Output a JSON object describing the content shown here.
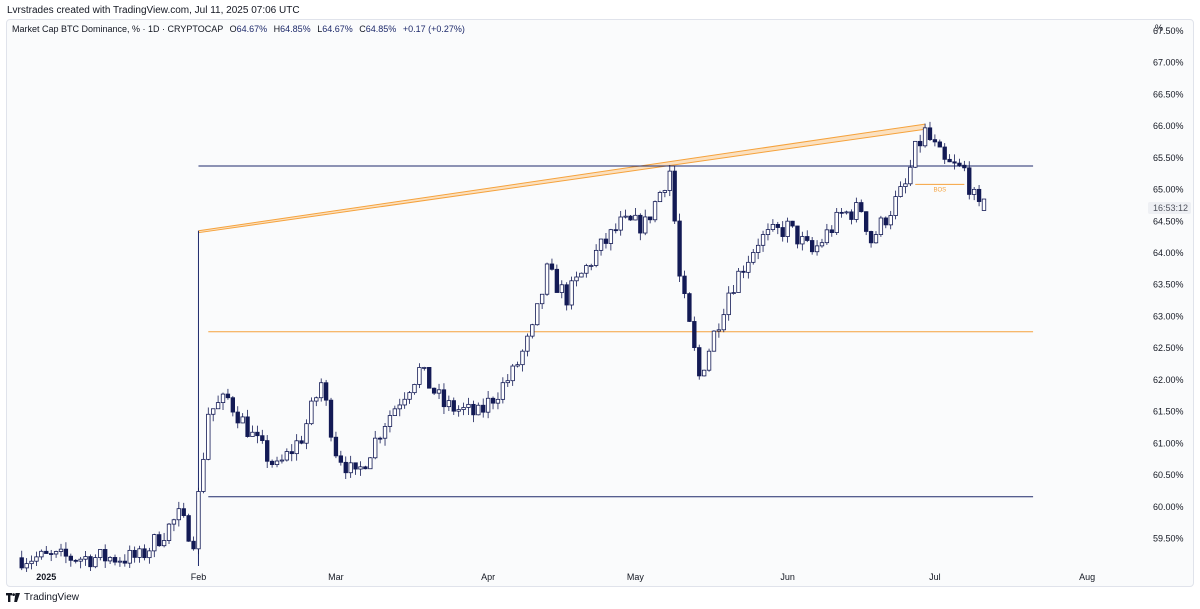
{
  "credit": "Lvrstrades created with TradingView.com, Jul 11, 2025 07:06 UTC",
  "legend": {
    "symbol": "Market Cap BTC Dominance, % · 1D · CRYPTOCAP",
    "open_label": "O",
    "open": "64.67%",
    "high_label": "H",
    "high": "64.85%",
    "low_label": "L",
    "low": "64.67%",
    "close_label": "C",
    "close": "64.85%",
    "change": "+0.17 (+0.27%)"
  },
  "price_axis_unit": "%",
  "countdown": "16:53:12",
  "footer": {
    "brand": "TradingView",
    "logo_icon": "tradingview-logo-icon"
  },
  "colors": {
    "candle": "#131a55",
    "orange": "#f5a23c",
    "channel_fill": "#fbe0bf",
    "axis_text": "#131722",
    "countdown_bg": "#eef0f4"
  },
  "chart_data": {
    "type": "candlestick",
    "title": "Market Cap BTC Dominance, % · 1D · CRYPTOCAP",
    "x_ticks": [
      "2025",
      "Feb",
      "Mar",
      "Apr",
      "May",
      "Jun",
      "Jul",
      "Aug"
    ],
    "x_tick_dates": [
      "2025-01-01",
      "2025-02-01",
      "2025-03-01",
      "2025-04-01",
      "2025-05-01",
      "2025-06-01",
      "2025-07-01",
      "2025-08-01"
    ],
    "y_ticks": [
      "67.50%",
      "67.00%",
      "66.50%",
      "66.00%",
      "65.50%",
      "65.00%",
      "64.50%",
      "64.00%",
      "63.50%",
      "63.00%",
      "62.50%",
      "62.00%",
      "61.50%",
      "61.00%",
      "60.50%",
      "60.00%",
      "59.50%"
    ],
    "ylim": [
      59.07,
      67.67
    ],
    "xlim": [
      "2024-12-24",
      "2025-08-13"
    ],
    "anchors": [
      [
        "2024-12-27",
        59.2
      ],
      [
        "2025-01-20",
        59.2
      ],
      [
        "2025-01-28",
        59.85
      ],
      [
        "2025-01-31",
        59.5
      ],
      [
        "2025-02-03",
        61.5
      ],
      [
        "2025-02-07",
        61.7
      ],
      [
        "2025-02-13",
        61.0
      ],
      [
        "2025-02-17",
        60.6
      ],
      [
        "2025-02-22",
        61.1
      ],
      [
        "2025-02-26",
        61.95
      ],
      [
        "2025-03-01",
        60.9
      ],
      [
        "2025-03-05",
        60.45
      ],
      [
        "2025-03-11",
        61.35
      ],
      [
        "2025-03-18",
        62.15
      ],
      [
        "2025-03-23",
        61.6
      ],
      [
        "2025-03-30",
        61.45
      ],
      [
        "2025-04-06",
        62.1
      ],
      [
        "2025-04-10",
        62.75
      ],
      [
        "2025-04-13",
        63.7
      ],
      [
        "2025-04-17",
        63.3
      ],
      [
        "2025-04-23",
        64.0
      ],
      [
        "2025-04-28",
        64.45
      ],
      [
        "2025-05-03",
        64.45
      ],
      [
        "2025-05-08",
        65.3
      ],
      [
        "2025-05-09",
        64.5
      ],
      [
        "2025-05-10",
        63.6
      ],
      [
        "2025-05-14",
        62.05
      ],
      [
        "2025-05-20",
        63.4
      ],
      [
        "2025-05-26",
        64.2
      ],
      [
        "2025-06-01",
        64.4
      ],
      [
        "2025-06-06",
        64.0
      ],
      [
        "2025-06-12",
        64.6
      ],
      [
        "2025-06-16",
        64.7
      ],
      [
        "2025-06-18",
        64.2
      ],
      [
        "2025-06-25",
        65.05
      ],
      [
        "2025-06-27",
        65.6
      ],
      [
        "2025-06-29",
        65.9
      ],
      [
        "2025-07-03",
        65.4
      ],
      [
        "2025-07-07",
        65.3
      ],
      [
        "2025-07-09",
        64.85
      ],
      [
        "2025-07-10",
        64.67
      ],
      [
        "2025-07-11",
        64.85
      ]
    ],
    "last_candle": {
      "date": "2025-07-11",
      "open": 64.67,
      "high": 64.85,
      "low": 64.67,
      "close": 64.85
    },
    "annotations": {
      "horizontal_lines": [
        {
          "value": 65.37,
          "color": "#1e2a6b",
          "from": "2025-02-01",
          "to": "2025-07-21"
        },
        {
          "value": 62.76,
          "color": "#f5a23c",
          "from": "2025-02-03",
          "to": "2025-07-21"
        },
        {
          "value": 60.16,
          "color": "#1e2a6b",
          "from": "2025-02-03",
          "to": "2025-07-21"
        }
      ],
      "vertical_line": {
        "date": "2025-02-01",
        "from": 59.07,
        "to": 64.35,
        "color": "#1e2a6b"
      },
      "rising_channel": {
        "upper": [
          [
            "2025-02-01",
            64.35
          ],
          [
            "2025-06-29",
            66.03
          ]
        ],
        "lower": [
          [
            "2025-02-01",
            64.32
          ],
          [
            "2025-06-29",
            65.95
          ]
        ]
      },
      "bos_label": {
        "text": "BOS",
        "value": 65.08,
        "from": "2025-06-27",
        "to": "2025-07-07"
      }
    }
  }
}
